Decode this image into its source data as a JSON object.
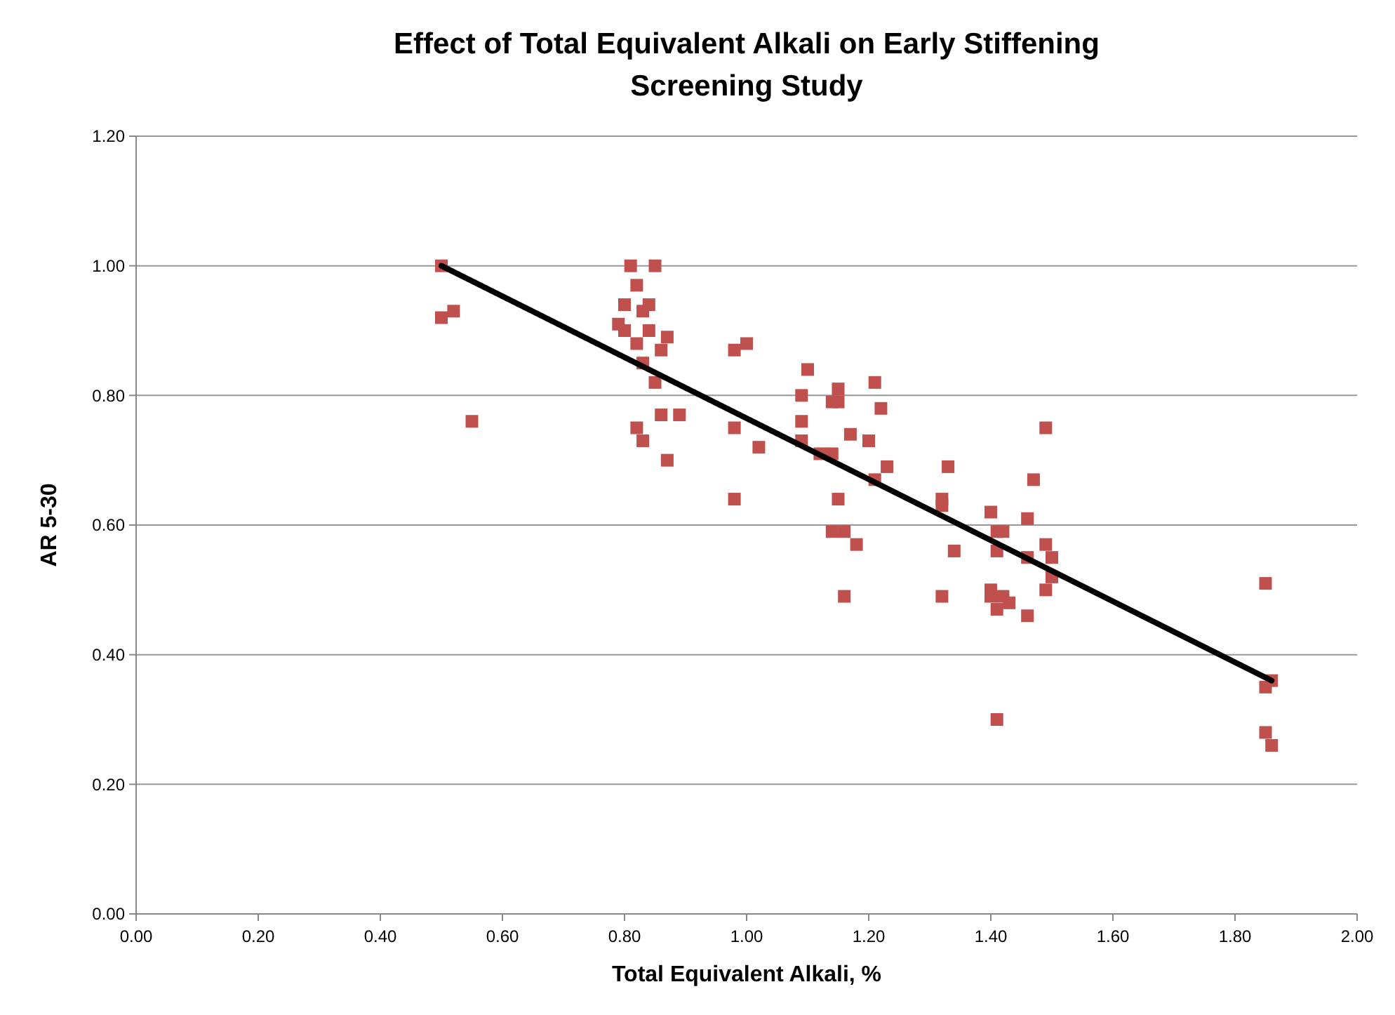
{
  "chart_data": {
    "type": "scatter",
    "title": "Effect of Total Equivalent Alkali on Early Stiffening\nScreening Study",
    "xlabel": "Total Equivalent Alkali, %",
    "ylabel": "AR 5-30",
    "xlim": [
      0,
      2
    ],
    "ylim": [
      0,
      1.2
    ],
    "xticks": [
      {
        "value": 0,
        "label": "0.00"
      },
      {
        "value": 0.2,
        "label": "0.20"
      },
      {
        "value": 0.4,
        "label": "0.40"
      },
      {
        "value": 0.6,
        "label": "0.60"
      },
      {
        "value": 0.8,
        "label": "0.80"
      },
      {
        "value": 1,
        "label": "1.00"
      },
      {
        "value": 1.2,
        "label": "1.20"
      },
      {
        "value": 1.4,
        "label": "1.40"
      },
      {
        "value": 1.6,
        "label": "1.60"
      },
      {
        "value": 1.8,
        "label": "1.80"
      },
      {
        "value": 2,
        "label": "2.00"
      }
    ],
    "yticks": [
      {
        "value": 0,
        "label": "0.00"
      },
      {
        "value": 0.2,
        "label": "0.20"
      },
      {
        "value": 0.4,
        "label": "0.40"
      },
      {
        "value": 0.6,
        "label": "0.60"
      },
      {
        "value": 0.8,
        "label": "0.80"
      },
      {
        "value": 1,
        "label": "1.00"
      },
      {
        "value": 1.2,
        "label": "1.20"
      }
    ],
    "grid": "y",
    "series": [
      {
        "color": "#c0504d",
        "marker": "square",
        "x": [
          0.5,
          0.5,
          0.52,
          0.55,
          0.81,
          0.85,
          0.82,
          0.8,
          0.84,
          0.83,
          0.79,
          0.8,
          0.84,
          0.87,
          0.82,
          0.86,
          0.83,
          0.85,
          0.86,
          0.89,
          0.82,
          0.83,
          0.87,
          0.98,
          1.0,
          0.98,
          1.02,
          0.98,
          1.1,
          1.09,
          1.09,
          1.09,
          1.12,
          1.14,
          1.15,
          1.15,
          1.14,
          1.17,
          1.21,
          1.22,
          1.2,
          1.23,
          1.21,
          1.15,
          1.14,
          1.16,
          1.18,
          1.16,
          1.33,
          1.32,
          1.32,
          1.34,
          1.32,
          1.4,
          1.41,
          1.42,
          1.41,
          1.4,
          1.4,
          1.42,
          1.43,
          1.41,
          1.41,
          1.47,
          1.49,
          1.46,
          1.46,
          1.49,
          1.5,
          1.49,
          1.5,
          1.46,
          1.85,
          1.85,
          1.86,
          1.85,
          1.86
        ],
        "values": [
          1.0,
          0.92,
          0.93,
          0.76,
          1.0,
          1.0,
          0.97,
          0.94,
          0.94,
          0.93,
          0.91,
          0.9,
          0.9,
          0.89,
          0.88,
          0.87,
          0.85,
          0.82,
          0.77,
          0.77,
          0.75,
          0.73,
          0.7,
          0.87,
          0.88,
          0.75,
          0.72,
          0.64,
          0.84,
          0.8,
          0.76,
          0.73,
          0.71,
          0.71,
          0.81,
          0.79,
          0.79,
          0.74,
          0.82,
          0.78,
          0.73,
          0.69,
          0.67,
          0.64,
          0.59,
          0.59,
          0.57,
          0.49,
          0.69,
          0.64,
          0.63,
          0.56,
          0.49,
          0.62,
          0.59,
          0.59,
          0.56,
          0.5,
          0.49,
          0.49,
          0.48,
          0.47,
          0.3,
          0.67,
          0.75,
          0.61,
          0.55,
          0.57,
          0.55,
          0.5,
          0.52,
          0.46,
          0.51,
          0.35,
          0.36,
          0.28,
          0.26
        ]
      },
      {
        "type": "line",
        "color": "#000000",
        "marker": "none",
        "line_style": "solid",
        "x": [
          0.5,
          1.86
        ],
        "values": [
          1.0,
          0.36
        ]
      }
    ]
  }
}
